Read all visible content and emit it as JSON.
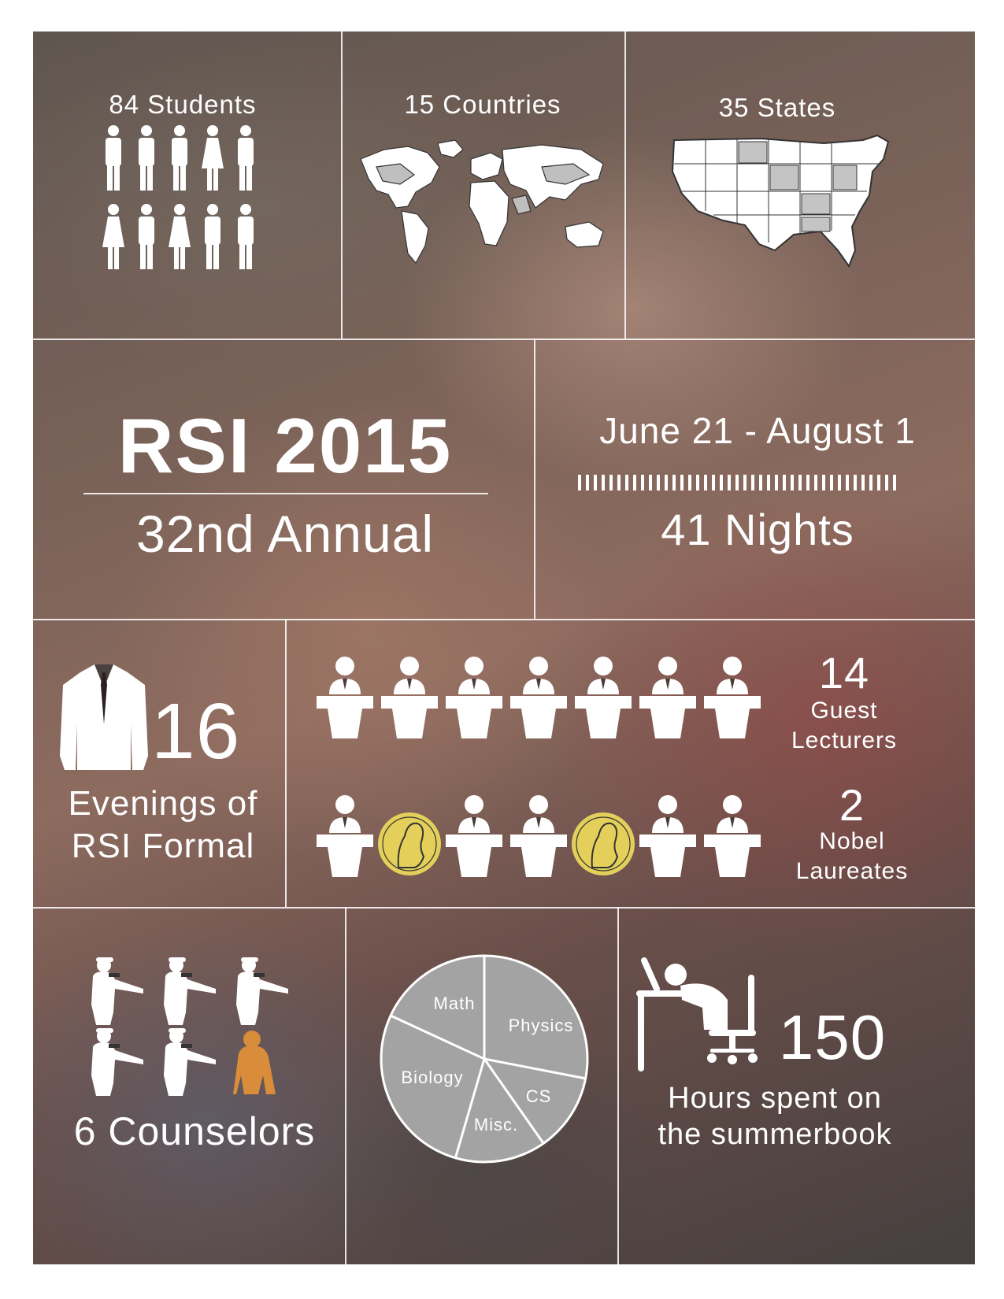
{
  "stats": {
    "students": "84 Students",
    "countries": "15 Countries",
    "states": "35 States"
  },
  "hero": {
    "title": "RSI 2015",
    "subtitle": "32nd Annual",
    "dates": "June 21 - August 1",
    "nights": "41 Nights"
  },
  "formal": {
    "count": "16",
    "line1": "Evenings of",
    "line2": "RSI Formal"
  },
  "lecturers": {
    "count": "14",
    "line1": "Guest",
    "line2": "Lecturers"
  },
  "nobel": {
    "count": "2",
    "line1": "Nobel",
    "line2": "Laureates"
  },
  "counselors": {
    "label": "6 Counselors"
  },
  "subjects": {
    "slices": [
      "Math",
      "Physics",
      "CS",
      "Misc.",
      "Biology"
    ]
  },
  "summerbook": {
    "count": "150",
    "line1": "Hours spent on",
    "line2": "the summerbook"
  },
  "colors": {
    "nobel_accent": "#e3cf5a",
    "gorilla_accent": "#d98c3a",
    "pie_fill": "#a3a3a3"
  }
}
